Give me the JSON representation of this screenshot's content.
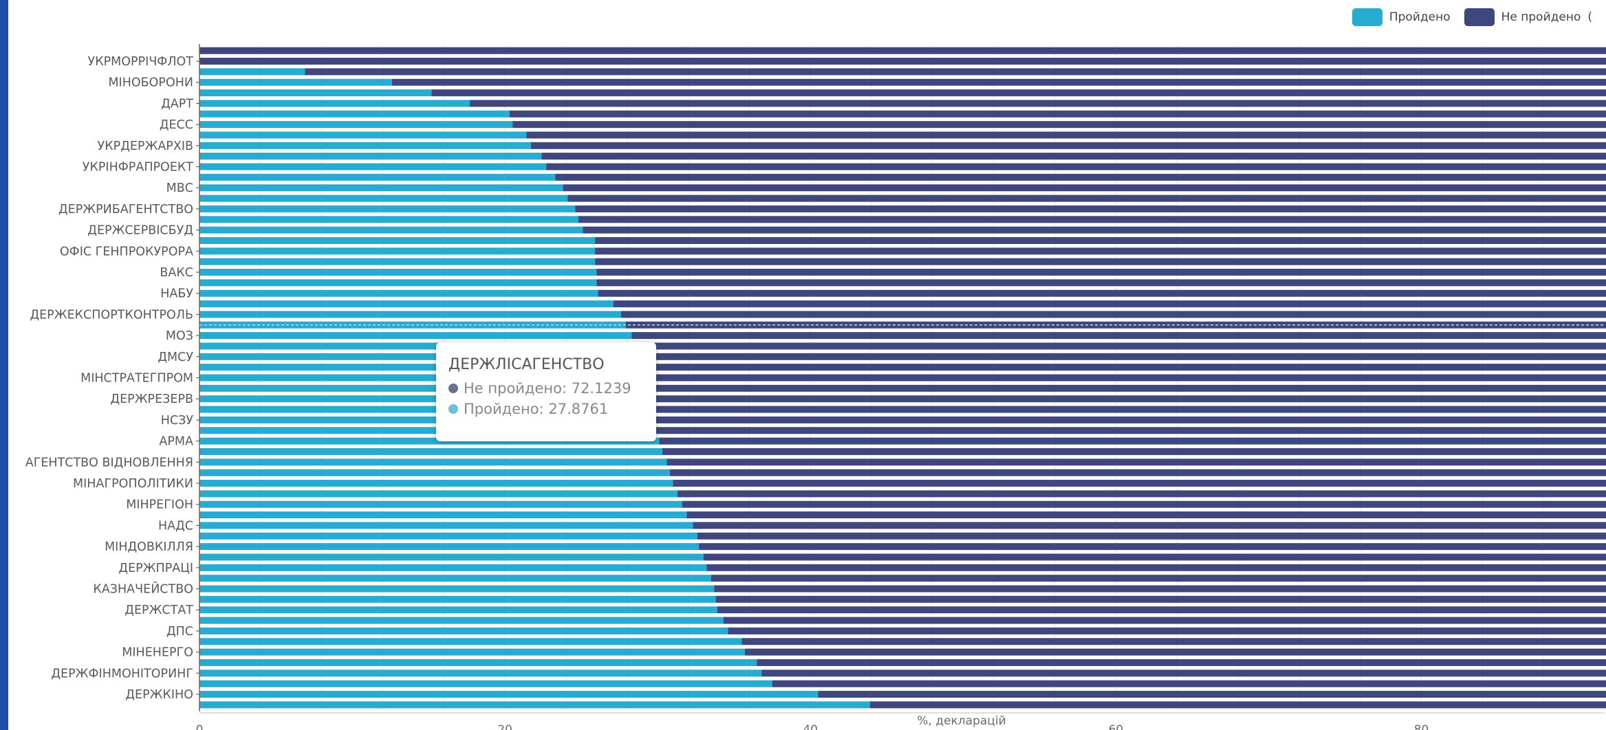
{
  "chart_data": {
    "type": "bar",
    "orientation": "horizontal",
    "stacked": true,
    "title": "",
    "xlabel": "%, декларацій",
    "ylabel": "",
    "xlim": [
      0,
      92
    ],
    "xticks": [
      0,
      20,
      40,
      60,
      80
    ],
    "legend_position": "top-right",
    "categories": [
      "УКРМОРРІЧФЛОТ",
      "МІНОБОРОНИ",
      "ДАРТ",
      "ДЕСС",
      "УКРДЕРЖАРХІВ",
      "УКРІНФРАПРОЕКТ",
      "МВС",
      "ДЕРЖРИБАГЕНТСТВО",
      "ДЕРЖСЕРВІСБУД",
      "ОФІС ГЕНПРОКУРОРА",
      "ВАКС",
      "НАБУ",
      "ДЕРЖЕКСПОРТКОНТРОЛЬ",
      "МОЗ",
      "ДМСУ",
      "МІНСТРАТЕГПРОМ",
      "ДЕРЖРЕЗЕРВ",
      "НСЗУ",
      "АРМА",
      "АГЕНТСТВО ВІДНОВЛЕННЯ",
      "МІНАГРОПОЛІТИКИ",
      "МІНРЕГІОН",
      "НАДС",
      "МІНДОВКІЛЛЯ",
      "ДЕРЖПРАЦІ",
      "КАЗНАЧЕЙСТВО",
      "ДЕРЖСТАТ",
      "ДПС",
      "МІНЕНЕРГО",
      "ДЕРЖФІНМОНІТОРИНГ",
      "ДЕРЖКІНО"
    ],
    "bars": [
      {
        "category": "",
        "passed": 0
      },
      {
        "category": "УКРМОРРІЧФЛОТ",
        "passed": 0
      },
      {
        "category": "",
        "passed": 6.9
      },
      {
        "category": "МІНОБОРОНИ",
        "passed": 12.6
      },
      {
        "category": "",
        "passed": 15.2
      },
      {
        "category": "ДАРТ",
        "passed": 17.7
      },
      {
        "category": "",
        "passed": 20.3
      },
      {
        "category": "ДЕСС",
        "passed": 20.5
      },
      {
        "category": "",
        "passed": 21.4
      },
      {
        "category": "УКРДЕРЖАРХІВ",
        "passed": 21.7
      },
      {
        "category": "",
        "passed": 22.4
      },
      {
        "category": "УКРІНФРАПРОЕКТ",
        "passed": 22.7
      },
      {
        "category": "",
        "passed": 23.3
      },
      {
        "category": "МВС",
        "passed": 23.8
      },
      {
        "category": "",
        "passed": 24.1
      },
      {
        "category": "ДЕРЖРИБАГЕНТСТВО",
        "passed": 24.6
      },
      {
        "category": "",
        "passed": 24.8
      },
      {
        "category": "ДЕРЖСЕРВІСБУД",
        "passed": 25.1
      },
      {
        "category": "",
        "passed": 25.9
      },
      {
        "category": "ОФІС ГЕНПРОКУРОРА",
        "passed": 25.9
      },
      {
        "category": "",
        "passed": 25.9
      },
      {
        "category": "ВАКС",
        "passed": 26.0
      },
      {
        "category": "",
        "passed": 26.0
      },
      {
        "category": "НАБУ",
        "passed": 26.1
      },
      {
        "category": "",
        "passed": 27.1
      },
      {
        "category": "ДЕРЖЕКСПОРТКОНТРОЛЬ",
        "passed": 27.6
      },
      {
        "category": "",
        "passed": 27.9
      },
      {
        "category": "МОЗ",
        "passed": 28.3
      },
      {
        "category": "",
        "passed": 28.5
      },
      {
        "category": "ДМСУ",
        "passed": 28.6
      },
      {
        "category": "",
        "passed": 29.0
      },
      {
        "category": "МІНСТРАТЕГПРОМ",
        "passed": 29.2
      },
      {
        "category": "",
        "passed": 29.3
      },
      {
        "category": "ДЕРЖРЕЗЕРВ",
        "passed": 29.4
      },
      {
        "category": "",
        "passed": 29.6
      },
      {
        "category": "НСЗУ",
        "passed": 29.8
      },
      {
        "category": "",
        "passed": 29.9
      },
      {
        "category": "АРМА",
        "passed": 30.1
      },
      {
        "category": "",
        "passed": 30.3
      },
      {
        "category": "АГЕНТСТВО ВІДНОВЛЕННЯ",
        "passed": 30.6
      },
      {
        "category": "",
        "passed": 30.8
      },
      {
        "category": "МІНАГРОПОЛІТИКИ",
        "passed": 31.0
      },
      {
        "category": "",
        "passed": 31.3
      },
      {
        "category": "МІНРЕГІОН",
        "passed": 31.6
      },
      {
        "category": "",
        "passed": 31.9
      },
      {
        "category": "НАДС",
        "passed": 32.3
      },
      {
        "category": "",
        "passed": 32.6
      },
      {
        "category": "МІНДОВКІЛЛЯ",
        "passed": 32.7
      },
      {
        "category": "",
        "passed": 33.0
      },
      {
        "category": "ДЕРЖПРАЦІ",
        "passed": 33.2
      },
      {
        "category": "",
        "passed": 33.5
      },
      {
        "category": "КАЗНАЧЕЙСТВО",
        "passed": 33.7
      },
      {
        "category": "",
        "passed": 33.8
      },
      {
        "category": "ДЕРЖСТАТ",
        "passed": 33.9
      },
      {
        "category": "",
        "passed": 34.3
      },
      {
        "category": "ДПС",
        "passed": 34.6
      },
      {
        "category": "",
        "passed": 35.5
      },
      {
        "category": "МІНЕНЕРГО",
        "passed": 35.7
      },
      {
        "category": "",
        "passed": 36.5
      },
      {
        "category": "ДЕРЖФІНМОНІТОРИНГ",
        "passed": 36.8
      },
      {
        "category": "",
        "passed": 37.5
      },
      {
        "category": "ДЕРЖКІНО",
        "passed": 40.5
      },
      {
        "category": "",
        "passed": 43.9
      }
    ],
    "series": [
      {
        "name": "Пройдено",
        "color": "#27abd1"
      },
      {
        "name": "Не пройдено",
        "color": "#3f477d"
      }
    ],
    "tooltip": {
      "title": "ДЕРЖЛІСАГЕНСТВО",
      "rows": [
        {
          "label": "Не пройдено: 72.1239",
          "dot_color": "#6a7094"
        },
        {
          "label": "Пройдено: 27.8761",
          "dot_color": "#6cc0d9"
        }
      ]
    }
  },
  "legend": {
    "items": [
      {
        "label": "Пройдено",
        "color": "#27abd1"
      },
      {
        "label": "Не пройдено",
        "color": "#3f477d"
      }
    ],
    "trailing": "("
  }
}
